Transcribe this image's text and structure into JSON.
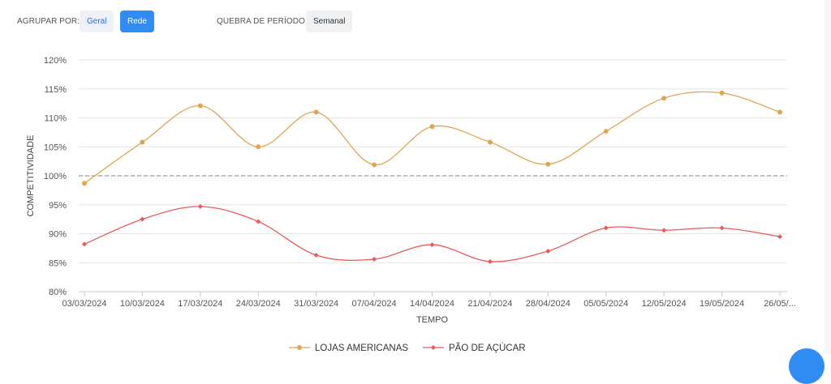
{
  "toolbar": {
    "group_label": "AGRUPAR POR:",
    "group_options": [
      "Geral",
      "Rede"
    ],
    "group_selected": "Rede",
    "period_label": "QUEBRA DE PERÍODO:",
    "period_value": "Semanal"
  },
  "colors": {
    "lojas": "#e0a552",
    "pao": "#e85a5a",
    "reference": "#9a9a9a",
    "accent": "#2f8cf2"
  },
  "chart_data": {
    "type": "line",
    "xlabel": "TEMPO",
    "ylabel": "COMPETITIVIDADE",
    "ylim": [
      80,
      120
    ],
    "yticks": [
      "80%",
      "85%",
      "90%",
      "95%",
      "100%",
      "105%",
      "110%",
      "115%",
      "120%"
    ],
    "categories": [
      "03/03/2024",
      "10/03/2024",
      "17/03/2024",
      "24/03/2024",
      "31/03/2024",
      "07/04/2024",
      "14/04/2024",
      "21/04/2024",
      "28/04/2024",
      "05/05/2024",
      "12/05/2024",
      "19/05/2024",
      "26/05/..."
    ],
    "reference_line": 100,
    "grid": true,
    "legend_position": "bottom",
    "series": [
      {
        "name": "LOJAS AMERICANAS",
        "values": [
          98.7,
          105.8,
          112.1,
          105.0,
          111.0,
          101.9,
          108.5,
          105.8,
          102.0,
          107.7,
          113.4,
          114.3,
          111.0
        ]
      },
      {
        "name": "PÃO DE AÇÚCAR",
        "values": [
          88.2,
          92.5,
          94.7,
          92.1,
          86.3,
          85.6,
          88.1,
          85.2,
          87.0,
          91.0,
          90.6,
          91.0,
          89.5
        ]
      }
    ]
  }
}
